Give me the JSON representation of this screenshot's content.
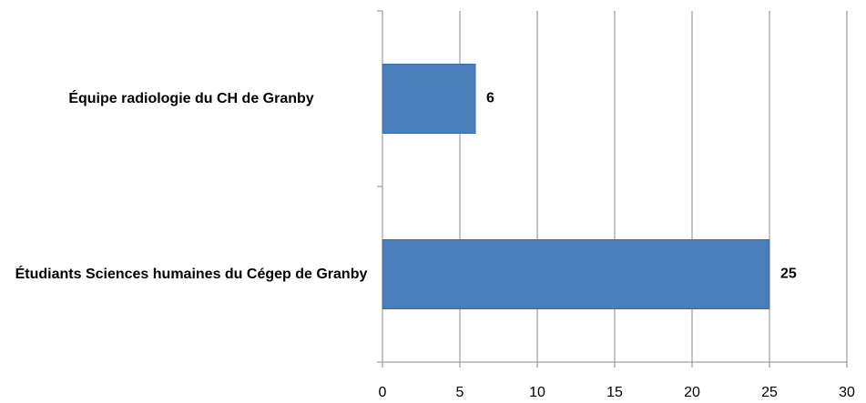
{
  "chart_data": {
    "type": "barh",
    "categories": [
      "Équipe radiologie du CH de Granby",
      "Étudiants Sciences humaines du Cégep de Granby"
    ],
    "values": [
      6,
      25
    ],
    "color": "#4a7ebb",
    "xlim": [
      0,
      30
    ],
    "xticks": [
      0,
      5,
      10,
      15,
      20,
      25,
      30
    ],
    "grid": true
  }
}
